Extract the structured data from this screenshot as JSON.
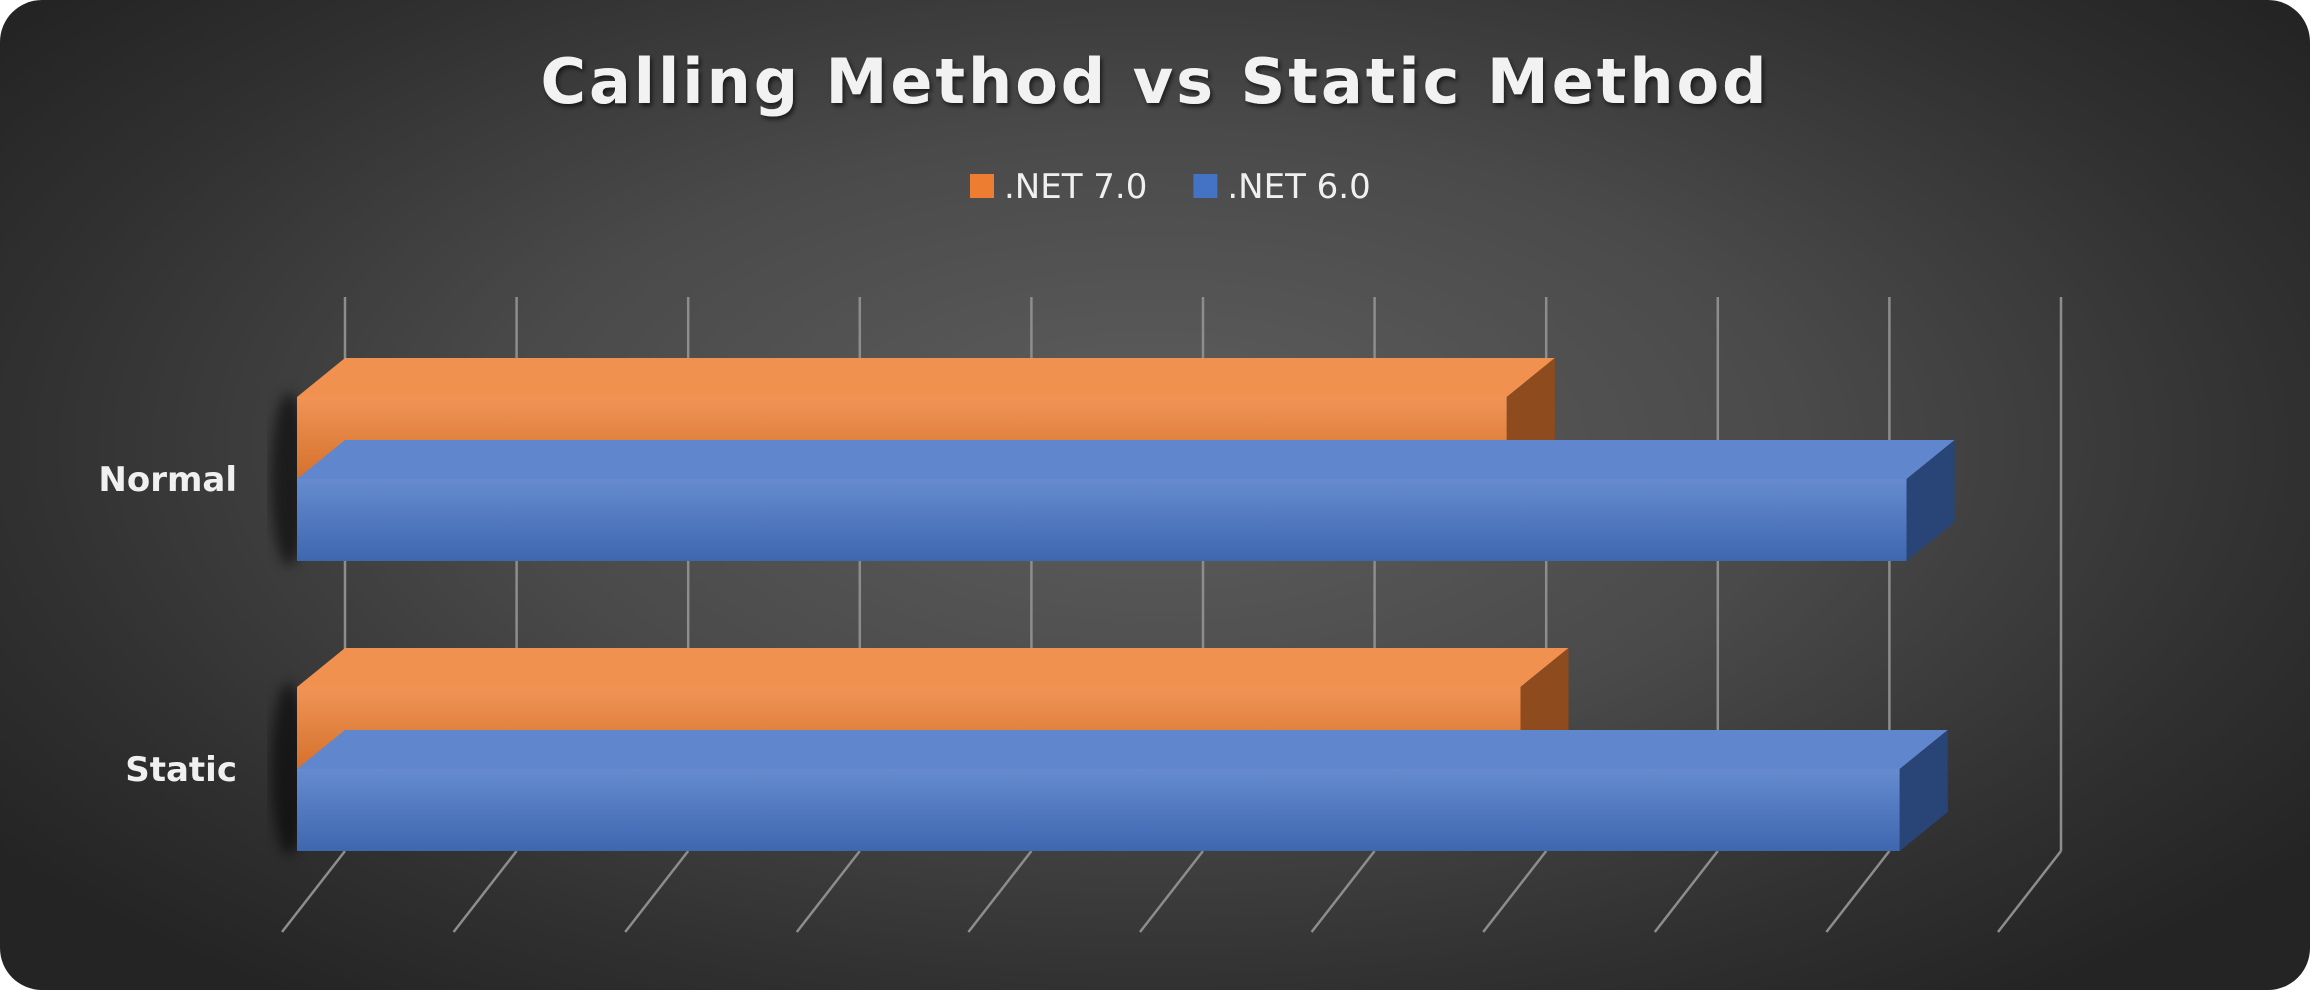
{
  "chart_data": {
    "type": "bar",
    "orientation": "horizontal",
    "style": "3d",
    "title": "Calling Method vs Static Method",
    "categories": [
      "Normal",
      "Static"
    ],
    "series": [
      {
        "name": ".NET 7.0",
        "color": "#ED7D31",
        "values": [
          7.05,
          7.13
        ]
      },
      {
        "name": ".NET 6.0",
        "color": "#4472C4",
        "values": [
          9.38,
          9.34
        ]
      }
    ],
    "xlim": [
      0,
      10
    ],
    "grid": true,
    "legend_position": "top",
    "axis_tick_labels_visible": false
  }
}
